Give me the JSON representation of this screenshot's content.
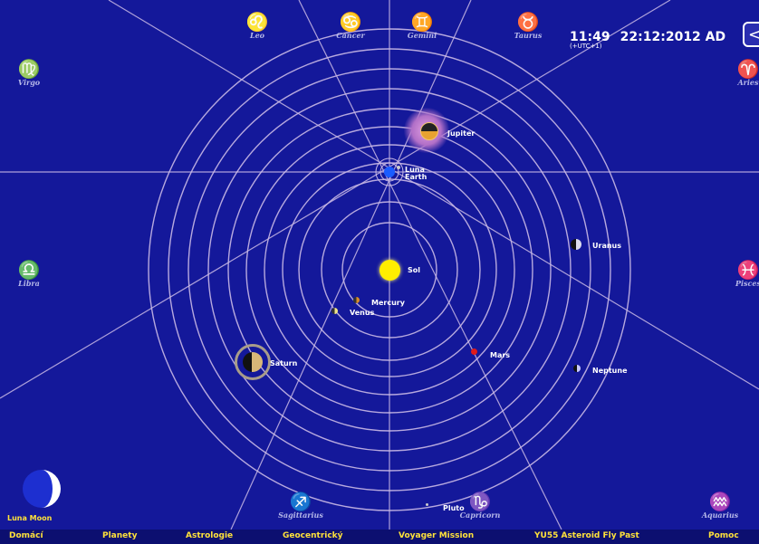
{
  "clock": {
    "time": "11:49",
    "date": "22:12:2012 AD",
    "tz": "(+UTC+1)"
  },
  "back_button": {
    "glyph": "<"
  },
  "zodiac": [
    {
      "glyph": "♌",
      "name": "Leo"
    },
    {
      "glyph": "♋",
      "name": "Cancer"
    },
    {
      "glyph": "♊",
      "name": "Gemini"
    },
    {
      "glyph": "♉",
      "name": "Taurus"
    },
    {
      "glyph": "♍",
      "name": "Virgo"
    },
    {
      "glyph": "♈",
      "name": "Aries"
    },
    {
      "glyph": "♎",
      "name": "Libra"
    },
    {
      "glyph": "♓",
      "name": "Pisces"
    },
    {
      "glyph": "♐",
      "name": "Sagittarius"
    },
    {
      "glyph": "♑",
      "name": "Capricorn"
    },
    {
      "glyph": "♒",
      "name": "Aquarius"
    }
  ],
  "planets": {
    "sun": "Sol",
    "mercury": "Mercury",
    "venus": "Venus",
    "earth": "Earth",
    "luna": "Luna",
    "mars": "Mars",
    "jupiter": "Jupiter",
    "saturn": "Saturn",
    "uranus": "Uranus",
    "neptune": "Neptune",
    "pluto": "Pluto"
  },
  "moon": {
    "label": "Luna Moon"
  },
  "nav": [
    "Domácí",
    "Planety",
    "Astrologie",
    "Geocentrický",
    "Voyager Mission",
    "YU55 Asteroid Fly Past",
    "Pomoc"
  ],
  "colors": {
    "sky": "#14189a",
    "orbit": "#c9b9e6",
    "nav_text": "#ffe23a",
    "sun": "#ffee00",
    "mars": "#e01a1a"
  }
}
